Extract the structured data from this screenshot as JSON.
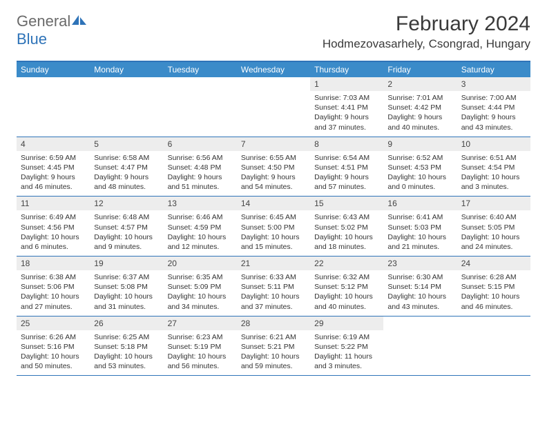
{
  "logo": {
    "word1": "General",
    "word2": "Blue"
  },
  "title": "February 2024",
  "location": "Hodmezovasarhely, Csongrad, Hungary",
  "colors": {
    "accent": "#2e73b8",
    "header_bg": "#3b8bc9",
    "daynum_bg": "#ededed",
    "text": "#333333",
    "logo_gray": "#6a6a6a"
  },
  "weekdays": [
    "Sunday",
    "Monday",
    "Tuesday",
    "Wednesday",
    "Thursday",
    "Friday",
    "Saturday"
  ],
  "weeks": [
    [
      null,
      null,
      null,
      null,
      {
        "n": "1",
        "sr": "7:03 AM",
        "ss": "4:41 PM",
        "dl": "9 hours and 37 minutes."
      },
      {
        "n": "2",
        "sr": "7:01 AM",
        "ss": "4:42 PM",
        "dl": "9 hours and 40 minutes."
      },
      {
        "n": "3",
        "sr": "7:00 AM",
        "ss": "4:44 PM",
        "dl": "9 hours and 43 minutes."
      }
    ],
    [
      {
        "n": "4",
        "sr": "6:59 AM",
        "ss": "4:45 PM",
        "dl": "9 hours and 46 minutes."
      },
      {
        "n": "5",
        "sr": "6:58 AM",
        "ss": "4:47 PM",
        "dl": "9 hours and 48 minutes."
      },
      {
        "n": "6",
        "sr": "6:56 AM",
        "ss": "4:48 PM",
        "dl": "9 hours and 51 minutes."
      },
      {
        "n": "7",
        "sr": "6:55 AM",
        "ss": "4:50 PM",
        "dl": "9 hours and 54 minutes."
      },
      {
        "n": "8",
        "sr": "6:54 AM",
        "ss": "4:51 PM",
        "dl": "9 hours and 57 minutes."
      },
      {
        "n": "9",
        "sr": "6:52 AM",
        "ss": "4:53 PM",
        "dl": "10 hours and 0 minutes."
      },
      {
        "n": "10",
        "sr": "6:51 AM",
        "ss": "4:54 PM",
        "dl": "10 hours and 3 minutes."
      }
    ],
    [
      {
        "n": "11",
        "sr": "6:49 AM",
        "ss": "4:56 PM",
        "dl": "10 hours and 6 minutes."
      },
      {
        "n": "12",
        "sr": "6:48 AM",
        "ss": "4:57 PM",
        "dl": "10 hours and 9 minutes."
      },
      {
        "n": "13",
        "sr": "6:46 AM",
        "ss": "4:59 PM",
        "dl": "10 hours and 12 minutes."
      },
      {
        "n": "14",
        "sr": "6:45 AM",
        "ss": "5:00 PM",
        "dl": "10 hours and 15 minutes."
      },
      {
        "n": "15",
        "sr": "6:43 AM",
        "ss": "5:02 PM",
        "dl": "10 hours and 18 minutes."
      },
      {
        "n": "16",
        "sr": "6:41 AM",
        "ss": "5:03 PM",
        "dl": "10 hours and 21 minutes."
      },
      {
        "n": "17",
        "sr": "6:40 AM",
        "ss": "5:05 PM",
        "dl": "10 hours and 24 minutes."
      }
    ],
    [
      {
        "n": "18",
        "sr": "6:38 AM",
        "ss": "5:06 PM",
        "dl": "10 hours and 27 minutes."
      },
      {
        "n": "19",
        "sr": "6:37 AM",
        "ss": "5:08 PM",
        "dl": "10 hours and 31 minutes."
      },
      {
        "n": "20",
        "sr": "6:35 AM",
        "ss": "5:09 PM",
        "dl": "10 hours and 34 minutes."
      },
      {
        "n": "21",
        "sr": "6:33 AM",
        "ss": "5:11 PM",
        "dl": "10 hours and 37 minutes."
      },
      {
        "n": "22",
        "sr": "6:32 AM",
        "ss": "5:12 PM",
        "dl": "10 hours and 40 minutes."
      },
      {
        "n": "23",
        "sr": "6:30 AM",
        "ss": "5:14 PM",
        "dl": "10 hours and 43 minutes."
      },
      {
        "n": "24",
        "sr": "6:28 AM",
        "ss": "5:15 PM",
        "dl": "10 hours and 46 minutes."
      }
    ],
    [
      {
        "n": "25",
        "sr": "6:26 AM",
        "ss": "5:16 PM",
        "dl": "10 hours and 50 minutes."
      },
      {
        "n": "26",
        "sr": "6:25 AM",
        "ss": "5:18 PM",
        "dl": "10 hours and 53 minutes."
      },
      {
        "n": "27",
        "sr": "6:23 AM",
        "ss": "5:19 PM",
        "dl": "10 hours and 56 minutes."
      },
      {
        "n": "28",
        "sr": "6:21 AM",
        "ss": "5:21 PM",
        "dl": "10 hours and 59 minutes."
      },
      {
        "n": "29",
        "sr": "6:19 AM",
        "ss": "5:22 PM",
        "dl": "11 hours and 3 minutes."
      },
      null,
      null
    ]
  ],
  "labels": {
    "sunrise": "Sunrise:",
    "sunset": "Sunset:",
    "daylight": "Daylight:"
  }
}
